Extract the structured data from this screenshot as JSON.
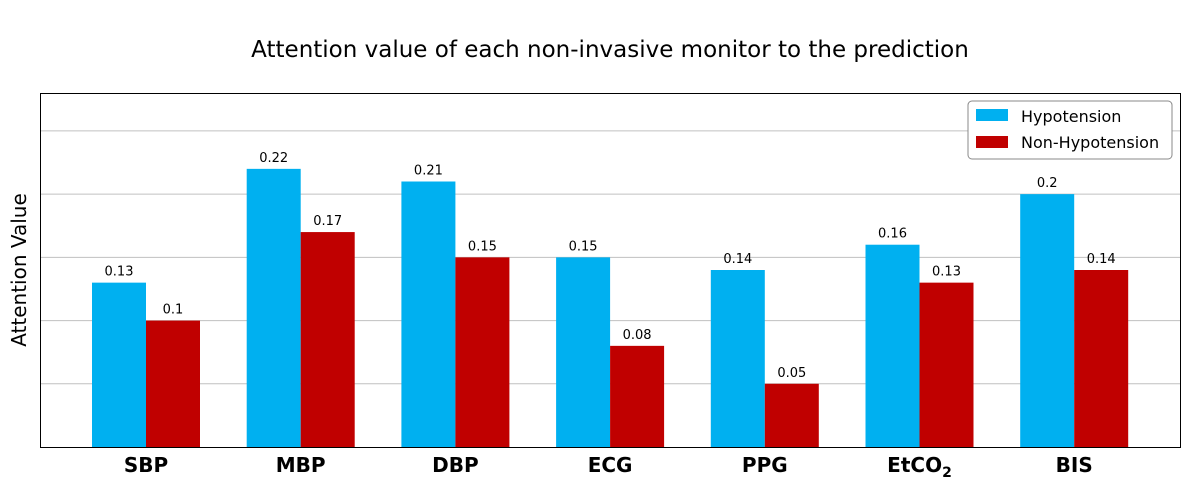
{
  "chart_data": {
    "type": "bar",
    "title": "Attention value of each non-invasive monitor to the prediction",
    "xlabel": "",
    "ylabel": "Attention Value",
    "categories": [
      "SBP",
      "MBP",
      "DBP",
      "ECG",
      "PPG",
      "EtCO",
      "BIS"
    ],
    "category_subscripts": [
      "",
      "",
      "",
      "",
      "",
      "2",
      ""
    ],
    "series": [
      {
        "name": "Hypotension",
        "color": "#00b0f0",
        "values": [
          0.13,
          0.22,
          0.21,
          0.15,
          0.14,
          0.16,
          0.2
        ],
        "labels": [
          "0.13",
          "0.22",
          "0.21",
          "0.15",
          "0.14",
          "0.16",
          "0.2"
        ]
      },
      {
        "name": "Non-Hypotension",
        "color": "#c00000",
        "values": [
          0.1,
          0.17,
          0.15,
          0.08,
          0.05,
          0.13,
          0.14
        ],
        "labels": [
          "0.1",
          "0.17",
          "0.15",
          "0.08",
          "0.05",
          "0.13",
          "0.14"
        ]
      }
    ],
    "ylim": [
      0,
      0.28
    ],
    "yticks": [
      0,
      0.05,
      0.1,
      0.15,
      0.2,
      0.25
    ],
    "grid": "horizontal",
    "legend_position": "top-right"
  }
}
